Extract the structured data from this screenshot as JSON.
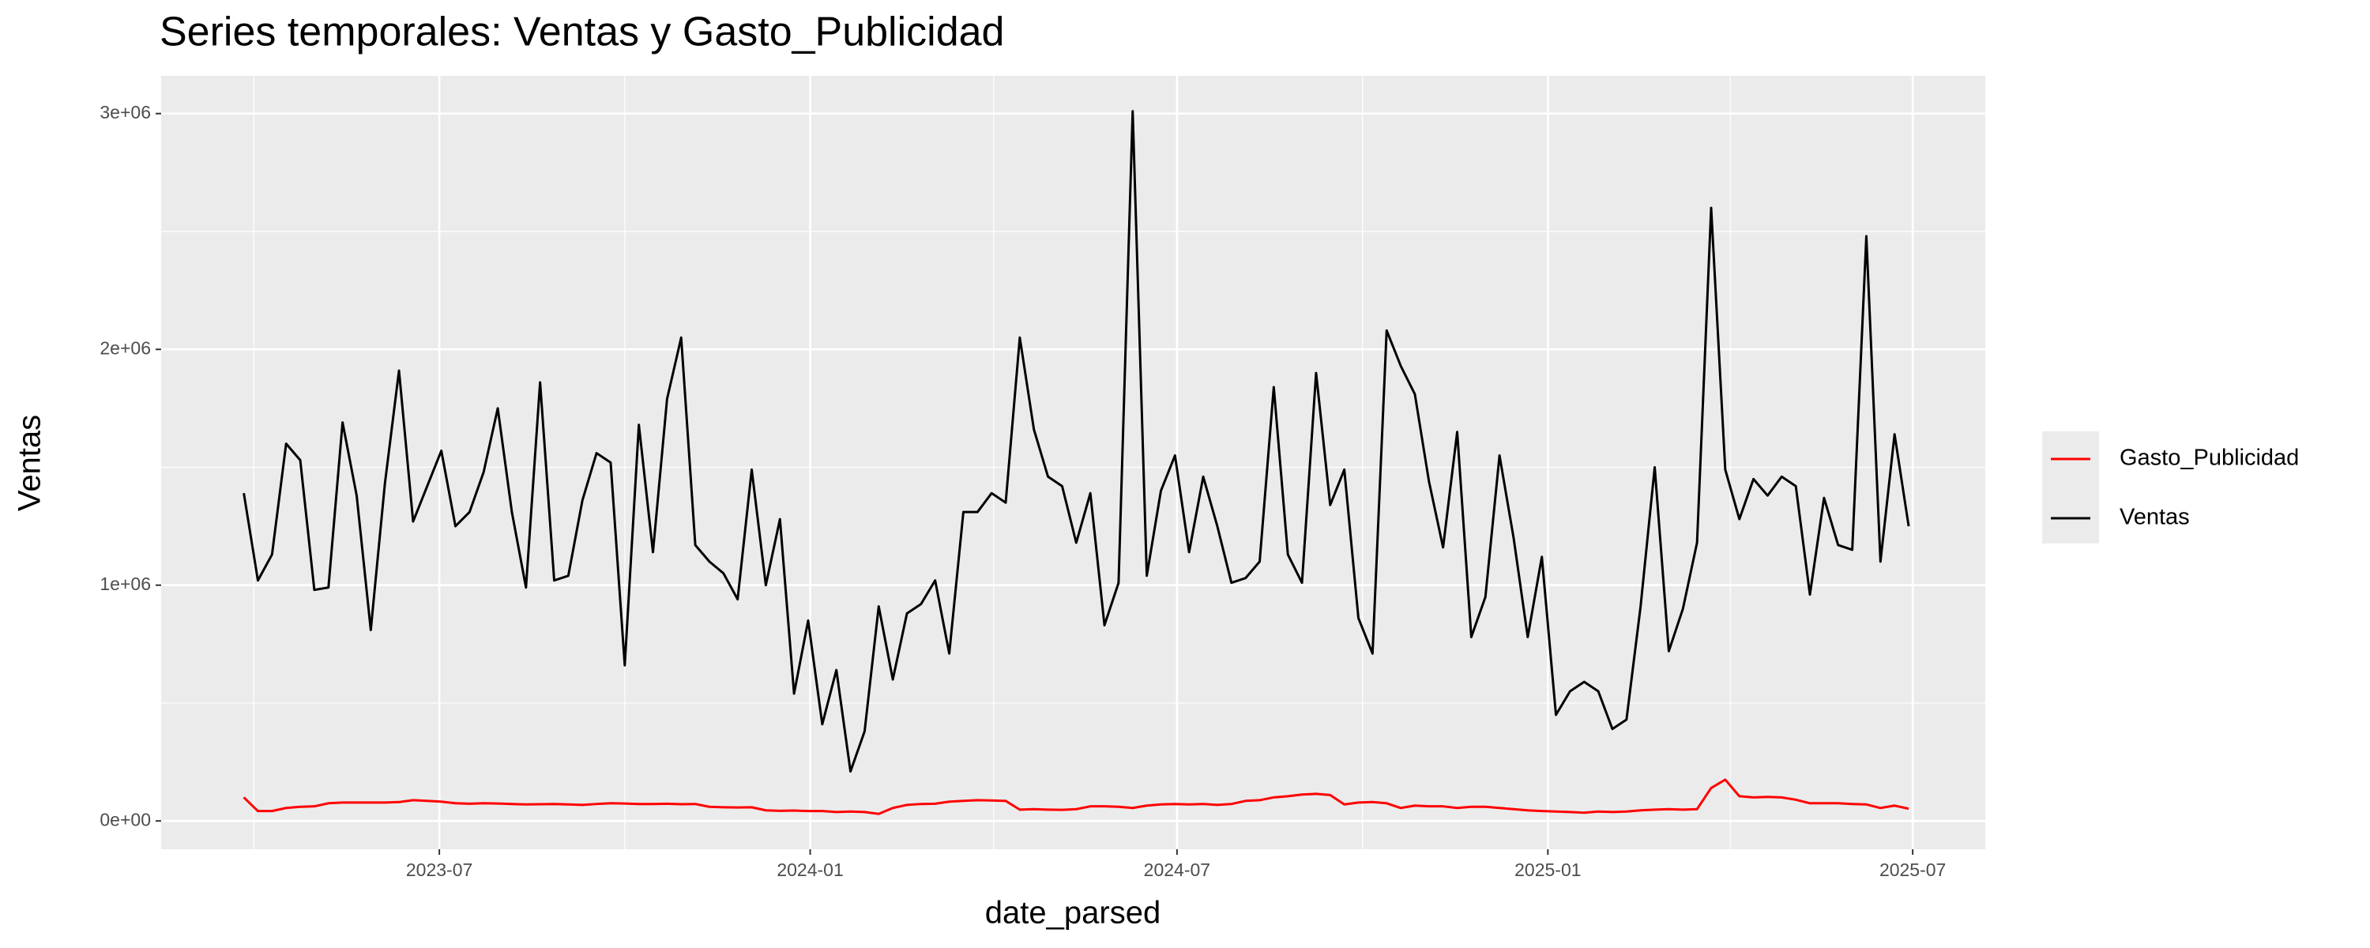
{
  "chart_data": {
    "type": "line",
    "title": "Series temporales: Ventas y Gasto_Publicidad",
    "x_label": "date_parsed",
    "y_label": "Ventas",
    "x": [
      "2023-03-26",
      "2023-04-02",
      "2023-04-09",
      "2023-04-16",
      "2023-04-23",
      "2023-04-30",
      "2023-05-07",
      "2023-05-14",
      "2023-05-21",
      "2023-05-28",
      "2023-06-04",
      "2023-06-11",
      "2023-06-18",
      "2023-06-25",
      "2023-07-02",
      "2023-07-09",
      "2023-07-16",
      "2023-07-23",
      "2023-07-30",
      "2023-08-06",
      "2023-08-13",
      "2023-08-20",
      "2023-08-27",
      "2023-09-03",
      "2023-09-10",
      "2023-09-17",
      "2023-09-24",
      "2023-10-01",
      "2023-10-08",
      "2023-10-15",
      "2023-10-22",
      "2023-10-29",
      "2023-11-05",
      "2023-11-12",
      "2023-11-19",
      "2023-11-26",
      "2023-12-03",
      "2023-12-10",
      "2023-12-17",
      "2023-12-24",
      "2023-12-31",
      "2024-01-07",
      "2024-01-14",
      "2024-01-21",
      "2024-01-28",
      "2024-02-04",
      "2024-02-11",
      "2024-02-18",
      "2024-02-25",
      "2024-03-03",
      "2024-03-10",
      "2024-03-17",
      "2024-03-24",
      "2024-03-31",
      "2024-04-07",
      "2024-04-14",
      "2024-04-21",
      "2024-04-28",
      "2024-05-05",
      "2024-05-12",
      "2024-05-19",
      "2024-05-26",
      "2024-06-02",
      "2024-06-09",
      "2024-06-16",
      "2024-06-23",
      "2024-06-30",
      "2024-07-07",
      "2024-07-14",
      "2024-07-21",
      "2024-07-28",
      "2024-08-04",
      "2024-08-11",
      "2024-08-18",
      "2024-08-25",
      "2024-09-01",
      "2024-09-08",
      "2024-09-15",
      "2024-09-22",
      "2024-09-29",
      "2024-10-06",
      "2024-10-13",
      "2024-10-20",
      "2024-10-27",
      "2024-11-03",
      "2024-11-10",
      "2024-11-17",
      "2024-11-24",
      "2024-12-01",
      "2024-12-08",
      "2024-12-15",
      "2024-12-22",
      "2024-12-29",
      "2025-01-05",
      "2025-01-12",
      "2025-01-19",
      "2025-01-26",
      "2025-02-02",
      "2025-02-09",
      "2025-02-16",
      "2025-02-23",
      "2025-03-02",
      "2025-03-09",
      "2025-03-16",
      "2025-03-23",
      "2025-03-30",
      "2025-04-06",
      "2025-04-13",
      "2025-04-20",
      "2025-04-27",
      "2025-05-04",
      "2025-05-11",
      "2025-05-18",
      "2025-05-25",
      "2025-06-01",
      "2025-06-08",
      "2025-06-15",
      "2025-06-22",
      "2025-06-29"
    ],
    "series": [
      {
        "name": "Gasto_Publicidad",
        "color": "#ff0000",
        "values": [
          100000,
          42000,
          42000,
          55000,
          60000,
          62000,
          75000,
          78000,
          78000,
          78000,
          78000,
          80000,
          88000,
          85000,
          82000,
          75000,
          73000,
          75000,
          74000,
          72000,
          70000,
          71000,
          72000,
          70000,
          68000,
          72000,
          75000,
          74000,
          72000,
          72000,
          73000,
          71000,
          72000,
          60000,
          58000,
          57000,
          58000,
          45000,
          43000,
          44000,
          42000,
          42000,
          38000,
          40000,
          38000,
          30000,
          55000,
          68000,
          72000,
          73000,
          82000,
          85000,
          88000,
          87000,
          85000,
          48000,
          50000,
          48000,
          47000,
          50000,
          62000,
          62000,
          60000,
          55000,
          65000,
          70000,
          72000,
          70000,
          72000,
          68000,
          72000,
          85000,
          88000,
          100000,
          105000,
          112000,
          115000,
          110000,
          70000,
          78000,
          80000,
          75000,
          55000,
          65000,
          62000,
          62000,
          55000,
          60000,
          60000,
          55000,
          50000,
          45000,
          42000,
          40000,
          38000,
          35000,
          40000,
          38000,
          40000,
          45000,
          48000,
          50000,
          48000,
          50000,
          140000,
          175000,
          105000,
          100000,
          102000,
          100000,
          90000,
          75000,
          75000,
          75000,
          72000,
          70000,
          55000,
          65000,
          52000
        ]
      },
      {
        "name": "Ventas",
        "color": "#000000",
        "values": [
          1390000,
          1020000,
          1130000,
          1600000,
          1530000,
          980000,
          990000,
          1690000,
          1380000,
          810000,
          1430000,
          1910000,
          1270000,
          1420000,
          1570000,
          1250000,
          1310000,
          1480000,
          1750000,
          1310000,
          990000,
          1860000,
          1020000,
          1040000,
          1360000,
          1560000,
          1520000,
          660000,
          1680000,
          1140000,
          1790000,
          2050000,
          1170000,
          1100000,
          1050000,
          940000,
          1490000,
          1000000,
          1280000,
          540000,
          850000,
          410000,
          640000,
          210000,
          380000,
          910000,
          600000,
          880000,
          920000,
          1020000,
          710000,
          1310000,
          1310000,
          1390000,
          1350000,
          2050000,
          1660000,
          1460000,
          1420000,
          1180000,
          1390000,
          830000,
          1010000,
          3010000,
          1040000,
          1400000,
          1550000,
          1140000,
          1460000,
          1250000,
          1010000,
          1030000,
          1100000,
          1840000,
          1130000,
          1010000,
          1900000,
          1340000,
          1490000,
          860000,
          710000,
          2080000,
          1930000,
          1810000,
          1440000,
          1160000,
          1650000,
          780000,
          950000,
          1550000,
          1200000,
          780000,
          1120000,
          450000,
          550000,
          590000,
          550000,
          390000,
          430000,
          910000,
          1500000,
          720000,
          900000,
          1180000,
          2600000,
          1490000,
          1280000,
          1450000,
          1380000,
          1460000,
          1420000,
          960000,
          1370000,
          1170000,
          1150000,
          2480000,
          1100000,
          1640000,
          1250000
        ]
      }
    ],
    "xlim": [
      "2023-02-13",
      "2025-08-06"
    ],
    "xticks": [
      "2023-07",
      "2024-01",
      "2024-07",
      "2025-01",
      "2025-07"
    ],
    "ylim": [
      -120000,
      3160000
    ],
    "yticks": [
      {
        "value": 0,
        "label": "0e+00"
      },
      {
        "value": 1000000,
        "label": "1e+06"
      },
      {
        "value": 2000000,
        "label": "2e+06"
      },
      {
        "value": 3000000,
        "label": "3e+06"
      }
    ],
    "grid": true,
    "legend_position": "right"
  }
}
